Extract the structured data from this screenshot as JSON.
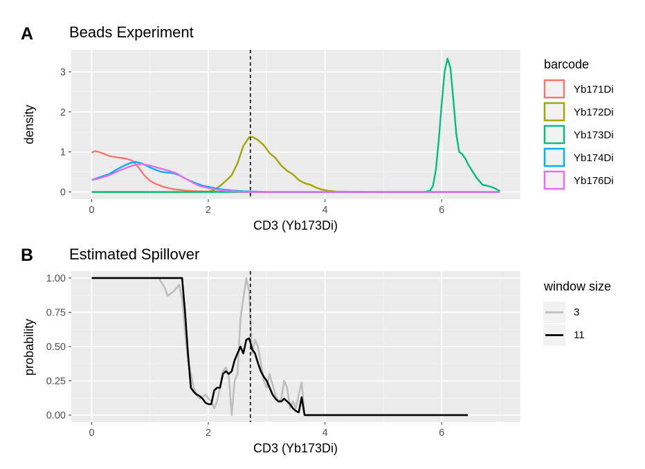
{
  "chart_data": [
    {
      "type": "line",
      "panel_label": "A",
      "title": "Beads Experiment",
      "xlabel": "CD3 (Yb173Di)",
      "ylabel": "density",
      "xlim": [
        -0.35,
        7.35
      ],
      "ylim": [
        -0.18,
        3.55
      ],
      "xticks": [
        0,
        2,
        4,
        6
      ],
      "yticks": [
        0,
        1,
        2,
        3
      ],
      "grid": true,
      "vline": {
        "x": 2.72,
        "style": "dashed"
      },
      "legend": {
        "title": "barcode",
        "placement": "right"
      },
      "series": [
        {
          "name": "Yb171Di",
          "color": "#F8766D",
          "x": [
            0,
            0.05,
            0.1,
            0.2,
            0.3,
            0.45,
            0.6,
            0.7,
            0.8,
            0.9,
            1.0,
            1.1,
            1.25,
            1.4,
            1.6,
            1.8,
            2.0,
            2.5,
            3.0,
            4.0,
            5.0,
            6.0,
            7.0
          ],
          "y": [
            0.98,
            1.02,
            1.01,
            0.96,
            0.9,
            0.86,
            0.83,
            0.78,
            0.62,
            0.42,
            0.28,
            0.2,
            0.12,
            0.07,
            0.04,
            0.02,
            0.01,
            0.0,
            0.0,
            0.0,
            0.0,
            0.0,
            0.0
          ]
        },
        {
          "name": "Yb172Di",
          "color": "#A3A500",
          "x": [
            0,
            1.0,
            1.8,
            2.0,
            2.1,
            2.2,
            2.3,
            2.4,
            2.5,
            2.6,
            2.7,
            2.75,
            2.85,
            2.95,
            3.05,
            3.15,
            3.25,
            3.35,
            3.45,
            3.55,
            3.65,
            3.75,
            3.85,
            3.95,
            4.05,
            4.2,
            5.0,
            7.0
          ],
          "y": [
            0.0,
            0.0,
            0.0,
            0.01,
            0.05,
            0.15,
            0.28,
            0.42,
            0.72,
            1.15,
            1.37,
            1.38,
            1.3,
            1.17,
            0.97,
            0.85,
            0.66,
            0.53,
            0.44,
            0.3,
            0.22,
            0.18,
            0.11,
            0.06,
            0.03,
            0.01,
            0.0,
            0.0
          ]
        },
        {
          "name": "Yb173Di",
          "color": "#00BF7D",
          "x": [
            0,
            5.7,
            5.8,
            5.85,
            5.9,
            5.95,
            6.0,
            6.05,
            6.1,
            6.15,
            6.2,
            6.25,
            6.3,
            6.35,
            6.4,
            6.45,
            6.5,
            6.6,
            6.7,
            6.8,
            6.9,
            7.0
          ],
          "y": [
            0.0,
            0.0,
            0.03,
            0.15,
            0.55,
            1.3,
            2.2,
            3.0,
            3.33,
            3.1,
            2.3,
            1.45,
            1.0,
            0.95,
            0.85,
            0.7,
            0.58,
            0.35,
            0.18,
            0.15,
            0.1,
            0.02
          ]
        },
        {
          "name": "Yb174Di",
          "color": "#00B0F6",
          "x": [
            0,
            0.1,
            0.3,
            0.5,
            0.65,
            0.75,
            0.85,
            0.95,
            1.05,
            1.2,
            1.4,
            1.5,
            1.6,
            1.7,
            1.8,
            1.9,
            2.0,
            2.1,
            2.2,
            2.4,
            2.6,
            2.8,
            3.0,
            4.0,
            5.0,
            6.0,
            7.0
          ],
          "y": [
            0.3,
            0.35,
            0.45,
            0.62,
            0.72,
            0.75,
            0.72,
            0.65,
            0.58,
            0.5,
            0.47,
            0.42,
            0.34,
            0.27,
            0.21,
            0.16,
            0.13,
            0.1,
            0.07,
            0.04,
            0.02,
            0.01,
            0.0,
            0.0,
            0.0,
            0.0,
            0.0
          ]
        },
        {
          "name": "Yb176Di",
          "color": "#E76BF3",
          "x": [
            0,
            0.1,
            0.3,
            0.5,
            0.7,
            0.85,
            1.0,
            1.15,
            1.3,
            1.45,
            1.55,
            1.65,
            1.75,
            1.85,
            2.0,
            2.15,
            2.3,
            2.5,
            2.7,
            3.0,
            4.0,
            5.0,
            6.0,
            7.0
          ],
          "y": [
            0.3,
            0.33,
            0.42,
            0.55,
            0.66,
            0.7,
            0.66,
            0.6,
            0.54,
            0.47,
            0.38,
            0.3,
            0.22,
            0.15,
            0.1,
            0.06,
            0.03,
            0.01,
            0.0,
            0.0,
            0.0,
            0.0,
            0.0,
            0.0
          ]
        }
      ]
    },
    {
      "type": "line",
      "panel_label": "B",
      "title": "Estimated Spillover",
      "xlabel": "CD3 (Yb173Di)",
      "ylabel": "probability",
      "xlim": [
        -0.35,
        7.35
      ],
      "ylim": [
        -0.05,
        1.05
      ],
      "xticks": [
        0,
        2,
        4,
        6
      ],
      "yticks": [
        0.0,
        0.25,
        0.5,
        0.75,
        1.0
      ],
      "ytick_labels": [
        "0.00",
        "0.25",
        "0.50",
        "0.75",
        "1.00"
      ],
      "grid": true,
      "vline": {
        "x": 2.72,
        "style": "dashed"
      },
      "legend": {
        "title": "window size",
        "placement": "right"
      },
      "series": [
        {
          "name": "3",
          "color": "#BEBEBE",
          "x": [
            0,
            1.15,
            1.25,
            1.3,
            1.4,
            1.5,
            1.55,
            1.6,
            1.65,
            1.7,
            1.75,
            1.8,
            1.85,
            1.9,
            1.95,
            2.0,
            2.05,
            2.1,
            2.15,
            2.2,
            2.25,
            2.3,
            2.35,
            2.4,
            2.45,
            2.5,
            2.55,
            2.6,
            2.65,
            2.7,
            2.75,
            2.8,
            2.85,
            2.9,
            2.95,
            3.0,
            3.05,
            3.1,
            3.15,
            3.2,
            3.25,
            3.3,
            3.35,
            3.4,
            3.45,
            3.5,
            3.55,
            3.6,
            3.65,
            3.7,
            4.0,
            4.25
          ],
          "y": [
            1.0,
            1.0,
            0.93,
            0.87,
            0.9,
            0.95,
            0.85,
            0.6,
            0.4,
            0.3,
            0.2,
            0.15,
            0.12,
            0.13,
            0.15,
            0.12,
            0.1,
            0.05,
            0.1,
            0.2,
            0.32,
            0.35,
            0.28,
            0.0,
            0.25,
            0.3,
            0.7,
            0.85,
            1.0,
            0.9,
            0.45,
            0.55,
            0.5,
            0.38,
            0.25,
            0.2,
            0.3,
            0.22,
            0.15,
            0.1,
            0.12,
            0.25,
            0.2,
            0.05,
            0.1,
            0.05,
            0.15,
            0.24,
            0.0,
            0.0,
            0.0,
            0.0
          ]
        },
        {
          "name": "11",
          "color": "#000000",
          "x": [
            0,
            1.55,
            1.6,
            1.65,
            1.7,
            1.75,
            1.8,
            1.85,
            1.9,
            1.95,
            2.0,
            2.05,
            2.1,
            2.15,
            2.2,
            2.25,
            2.3,
            2.35,
            2.4,
            2.45,
            2.5,
            2.55,
            2.6,
            2.65,
            2.7,
            2.75,
            2.8,
            2.85,
            2.9,
            2.95,
            3.0,
            3.05,
            3.1,
            3.15,
            3.2,
            3.25,
            3.3,
            3.35,
            3.4,
            3.45,
            3.5,
            3.55,
            3.6,
            3.65,
            6.45
          ],
          "y": [
            1.0,
            1.0,
            0.75,
            0.45,
            0.2,
            0.17,
            0.15,
            0.14,
            0.12,
            0.09,
            0.08,
            0.08,
            0.18,
            0.2,
            0.2,
            0.3,
            0.32,
            0.3,
            0.32,
            0.4,
            0.45,
            0.5,
            0.45,
            0.55,
            0.56,
            0.48,
            0.45,
            0.38,
            0.32,
            0.28,
            0.25,
            0.2,
            0.15,
            0.12,
            0.1,
            0.1,
            0.12,
            0.1,
            0.08,
            0.05,
            0.03,
            0.02,
            0.13,
            0.0,
            0.0
          ]
        }
      ]
    }
  ]
}
